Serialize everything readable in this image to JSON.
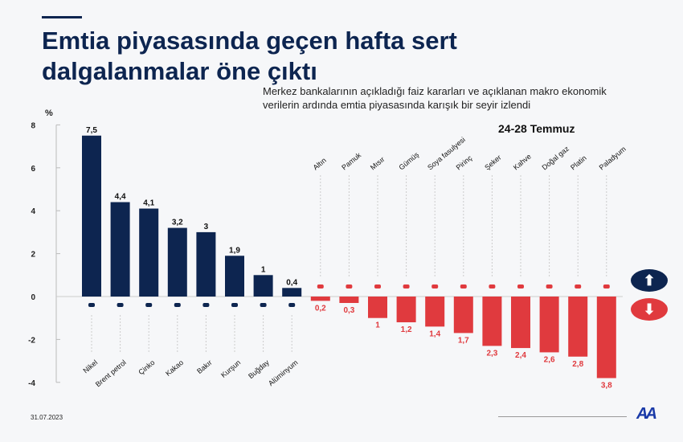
{
  "title": "Emtia piyasasında geçen hafta sert dalgalanmalar öne çıktı",
  "subtitle": "Merkez bankalarının açıkladığı faiz kararları ve açıklanan makro ekonomik verilerin ardında emtia piyasasında karışık bir seyir izlendi",
  "period": "24-28 Temmuz",
  "footer_date": "31.07.2023",
  "logo": "AA",
  "icons": {
    "up": "arrow-up-icon",
    "down": "arrow-down-icon"
  },
  "colors": {
    "positive": "#0d2550",
    "negative": "#e03a3e"
  },
  "chart_data": {
    "type": "bar",
    "ylabel": "%",
    "ylim": [
      -4,
      8
    ],
    "yticks": [
      8,
      6,
      4,
      2,
      0,
      -2,
      -4
    ],
    "grid": false,
    "categories": [
      "Nikel",
      "Brent petrol",
      "Çinko",
      "Kakao",
      "Bakır",
      "Kurşun",
      "Buğday",
      "Alüminyum",
      "Altın",
      "Pamuk",
      "Mısır",
      "Gümüş",
      "Soya fasulyesi",
      "Pirinç",
      "Şeker",
      "Kahve",
      "Doğal gaz",
      "Platin",
      "Paladyum"
    ],
    "values": [
      7.5,
      4.4,
      4.1,
      3.2,
      3,
      1.9,
      1,
      0.4,
      -0.2,
      -0.3,
      -1,
      -1.2,
      -1.4,
      -1.7,
      -2.3,
      -2.4,
      -2.6,
      -2.8,
      -3.8
    ],
    "value_labels": [
      "7,5",
      "4,4",
      "4,1",
      "3,2",
      "3",
      "1,9",
      "1",
      "0,4",
      "0,2",
      "0,3",
      "1",
      "1,2",
      "1,4",
      "1,7",
      "2,3",
      "2,4",
      "2,6",
      "2,8",
      "3,8"
    ]
  }
}
